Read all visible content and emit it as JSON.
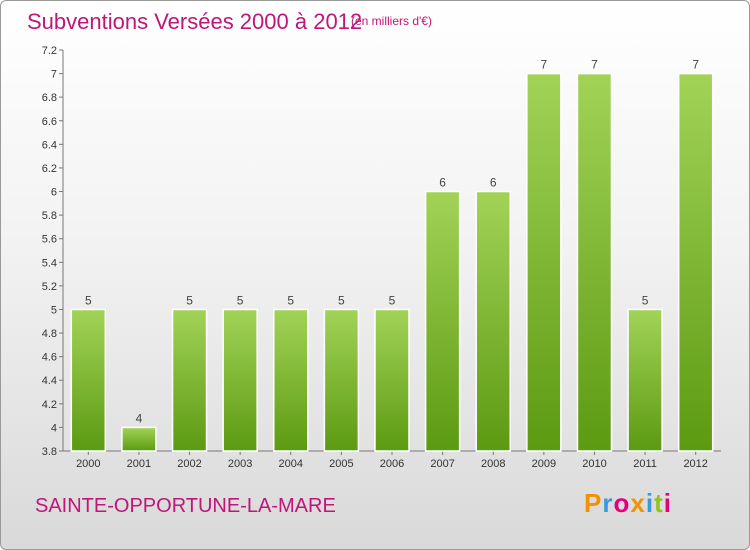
{
  "header": {
    "title": "Subventions Versées 2000 à 2012",
    "subtitle": "(en milliers d'€)"
  },
  "footer": {
    "town": "SAINTE-OPPORTUNE-LA-MARE",
    "logo_text": "Proxiti"
  },
  "colors": {
    "accent": "#c0157a",
    "bar_top": "#a2d357",
    "bar_bottom": "#5c9a12"
  },
  "chart_data": {
    "type": "bar",
    "title": "Subventions Versées 2000 à 2012",
    "subtitle": "(en milliers d'€)",
    "xlabel": "",
    "ylabel": "",
    "ylim": [
      3.8,
      7.2
    ],
    "yticks": [
      3.8,
      4,
      4.2,
      4.4,
      4.6,
      4.8,
      5,
      5.2,
      5.4,
      5.6,
      5.8,
      6,
      6.2,
      6.4,
      6.6,
      6.8,
      7,
      7.2
    ],
    "categories": [
      "2000",
      "2001",
      "2002",
      "2003",
      "2004",
      "2005",
      "2006",
      "2007",
      "2008",
      "2009",
      "2010",
      "2011",
      "2012"
    ],
    "values": [
      5,
      4,
      5,
      5,
      5,
      5,
      5,
      6,
      6,
      7,
      7,
      5,
      7
    ],
    "grid": false,
    "legend": "none"
  }
}
